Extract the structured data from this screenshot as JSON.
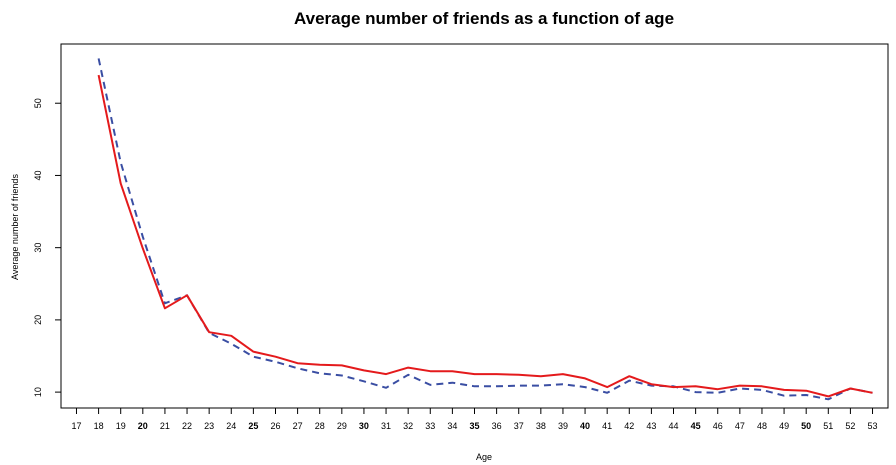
{
  "chart_data": {
    "type": "line",
    "title": "Average number of friends as a function of age",
    "xlabel": "Age",
    "ylabel": "Average number of friends",
    "x_ticks": [
      17,
      18,
      19,
      20,
      21,
      22,
      23,
      24,
      25,
      26,
      27,
      28,
      29,
      30,
      31,
      32,
      33,
      34,
      35,
      36,
      37,
      38,
      39,
      40,
      41,
      42,
      43,
      44,
      45,
      46,
      47,
      48,
      49,
      50,
      51,
      52,
      53
    ],
    "x_bold_ticks": [
      20,
      25,
      30,
      35,
      40,
      45,
      50
    ],
    "y_ticks": [
      10,
      20,
      30,
      40,
      50
    ],
    "xlim": [
      16.3,
      53.7
    ],
    "ylim": [
      7.8,
      58.2
    ],
    "x": [
      18,
      19,
      20,
      21,
      22,
      23,
      24,
      25,
      26,
      27,
      28,
      29,
      30,
      31,
      32,
      33,
      34,
      35,
      36,
      37,
      38,
      39,
      40,
      41,
      42,
      43,
      44,
      45,
      46,
      47,
      48,
      49,
      50,
      51,
      52,
      53
    ],
    "series": [
      {
        "color": "#e41a1c",
        "line_style": "solid",
        "values": [
          53.9,
          38.9,
          29.9,
          21.6,
          23.4,
          18.3,
          17.8,
          15.6,
          14.9,
          14.0,
          13.8,
          13.7,
          13.0,
          12.5,
          13.4,
          12.9,
          12.9,
          12.5,
          12.5,
          12.4,
          12.2,
          12.5,
          11.9,
          10.7,
          12.2,
          11.1,
          10.7,
          10.8,
          10.4,
          10.9,
          10.8,
          10.3,
          10.2,
          9.4,
          10.5,
          9.9
        ]
      },
      {
        "color": "#3a4ea3",
        "line_style": "dashed",
        "values": [
          56.2,
          41.8,
          31.5,
          22.3,
          23.4,
          18.2,
          16.7,
          14.9,
          14.2,
          13.3,
          12.6,
          12.3,
          11.5,
          10.6,
          12.4,
          11.0,
          11.3,
          10.8,
          10.8,
          10.9,
          10.9,
          11.1,
          10.7,
          9.9,
          11.6,
          10.9,
          10.8,
          10.0,
          9.9,
          10.5,
          10.3,
          9.5,
          9.6,
          9.0,
          10.5,
          9.9
        ]
      }
    ]
  }
}
